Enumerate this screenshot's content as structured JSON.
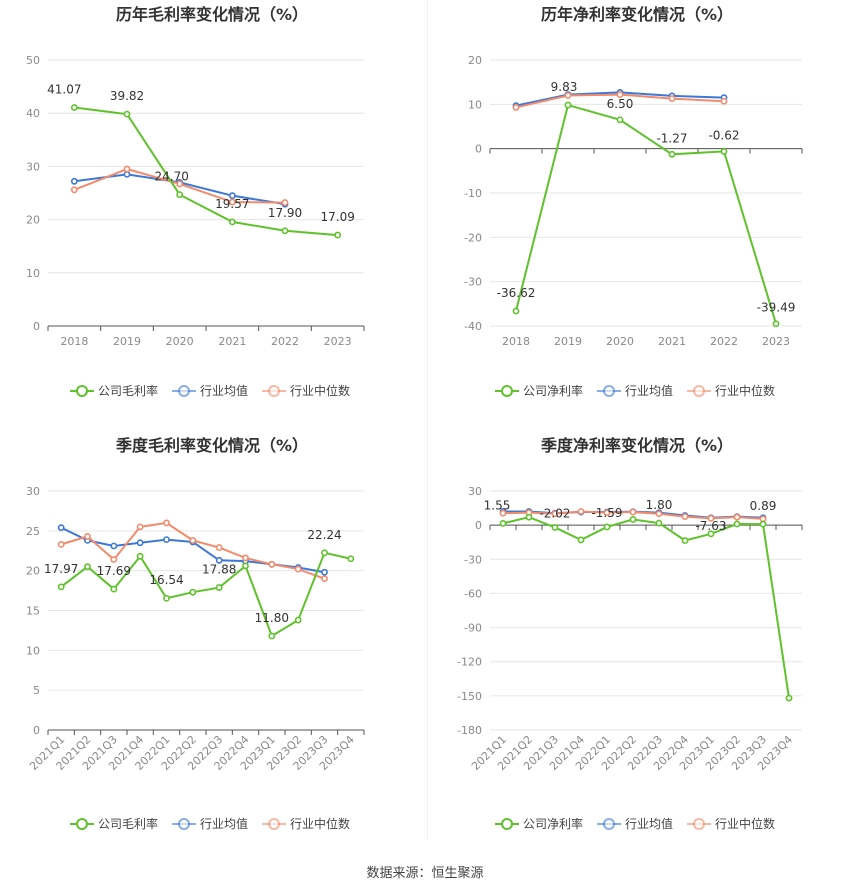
{
  "source_label": "数据来源：恒生聚源",
  "colors": {
    "company": "#5ec22b",
    "industry_avg": "#3c78d8",
    "industry_median": "#f28b6b",
    "grid": "#e6e6e6",
    "axis": "#555555",
    "tick": "#8a8a8a"
  },
  "legend_labels": [
    "公司毛利率",
    "行业均值",
    "行业中位数"
  ],
  "chart_data": [
    {
      "type": "line",
      "title": "历年毛利率变化情况（%）",
      "categories": [
        "2018",
        "2019",
        "2020",
        "2021",
        "2022",
        "2023"
      ],
      "ylim": [
        0,
        50
      ],
      "yticks": [
        0,
        10,
        20,
        30,
        40,
        50
      ],
      "legend": [
        "公司毛利率",
        "行业均值",
        "行业中位数"
      ],
      "series": [
        {
          "name": "公司毛利率",
          "values": [
            41.07,
            39.82,
            24.7,
            19.57,
            17.9,
            17.09
          ],
          "labels": [
            "41.07",
            "39.82",
            "24.70",
            "19.57",
            "17.90",
            "17.09"
          ]
        },
        {
          "name": "行业均值",
          "values": [
            27.2,
            28.5,
            27.0,
            24.5,
            22.9,
            null
          ]
        },
        {
          "name": "行业中位数",
          "values": [
            25.6,
            29.5,
            26.7,
            23.3,
            23.2,
            null
          ]
        }
      ]
    },
    {
      "type": "line",
      "title": "历年净利率变化情况（%）",
      "categories": [
        "2018",
        "2019",
        "2020",
        "2021",
        "2022",
        "2023"
      ],
      "ylim": [
        -40,
        20
      ],
      "yticks": [
        -40,
        -30,
        -20,
        -10,
        0,
        10,
        20
      ],
      "legend": [
        "公司净利率",
        "行业均值",
        "行业中位数"
      ],
      "series": [
        {
          "name": "公司净利率",
          "values": [
            -36.62,
            9.83,
            6.5,
            -1.27,
            -0.62,
            -39.49
          ],
          "labels": [
            "-36.62",
            "9.83",
            "6.50",
            "-1.27",
            "-0.62",
            "-39.49"
          ]
        },
        {
          "name": "行业均值",
          "values": [
            9.7,
            12.2,
            12.7,
            11.9,
            11.5,
            null
          ]
        },
        {
          "name": "行业中位数",
          "values": [
            9.3,
            12.0,
            12.2,
            11.3,
            10.7,
            null
          ]
        }
      ]
    },
    {
      "type": "line",
      "title": "季度毛利率变化情况（%）",
      "categories": [
        "2021Q1",
        "2021Q2",
        "2021Q3",
        "2021Q4",
        "2022Q1",
        "2022Q2",
        "2022Q3",
        "2022Q4",
        "2023Q1",
        "2023Q2",
        "2023Q3",
        "2023Q4"
      ],
      "ylim": [
        0,
        30
      ],
      "yticks": [
        0,
        5,
        10,
        15,
        20,
        25,
        30
      ],
      "legend": [
        "公司毛利率",
        "行业均值",
        "行业中位数"
      ],
      "series": [
        {
          "name": "公司毛利率",
          "values": [
            17.97,
            20.5,
            17.69,
            21.8,
            16.54,
            17.3,
            17.88,
            20.6,
            11.8,
            13.8,
            22.24,
            21.5
          ],
          "labels": [
            "17.97",
            "",
            "17.69",
            "",
            "16.54",
            "",
            "17.88",
            "",
            "11.80",
            "",
            "22.24",
            ""
          ]
        },
        {
          "name": "行业均值",
          "values": [
            25.4,
            23.8,
            23.1,
            23.5,
            23.9,
            23.6,
            21.3,
            21.2,
            20.8,
            20.4,
            19.8,
            null
          ]
        },
        {
          "name": "行业中位数",
          "values": [
            23.3,
            24.3,
            21.4,
            25.5,
            26.0,
            23.8,
            22.9,
            21.6,
            20.8,
            20.2,
            19.0,
            null
          ]
        }
      ]
    },
    {
      "type": "line",
      "title": "季度净利率变化情况（%）",
      "categories": [
        "2021Q1",
        "2021Q2",
        "2021Q3",
        "2021Q4",
        "2022Q1",
        "2022Q2",
        "2022Q3",
        "2022Q4",
        "2023Q1",
        "2023Q2",
        "2023Q3",
        "2023Q4"
      ],
      "ylim": [
        -180,
        30
      ],
      "yticks": [
        -180,
        -150,
        -120,
        -90,
        -60,
        -30,
        0,
        30
      ],
      "legend": [
        "公司净利率",
        "行业均值",
        "行业中位数"
      ],
      "series": [
        {
          "name": "公司净利率",
          "values": [
            1.55,
            7.0,
            -2.02,
            -13.0,
            -1.59,
            5.0,
            1.8,
            -13.5,
            -7.63,
            1.0,
            0.89,
            -152.0
          ],
          "labels": [
            "1.55",
            "",
            "-2.02",
            "",
            "-1.59",
            "",
            "1.80",
            "",
            "-7.63",
            "",
            "0.89",
            ""
          ]
        },
        {
          "name": "行业均值",
          "values": [
            12.0,
            12.0,
            10.5,
            11.5,
            11.5,
            11.8,
            11.0,
            8.5,
            6.5,
            7.5,
            6.5,
            null
          ]
        },
        {
          "name": "行业中位数",
          "values": [
            10.5,
            11.0,
            10.0,
            12.0,
            11.0,
            11.5,
            10.0,
            7.5,
            6.0,
            7.0,
            5.5,
            null
          ]
        }
      ]
    }
  ]
}
